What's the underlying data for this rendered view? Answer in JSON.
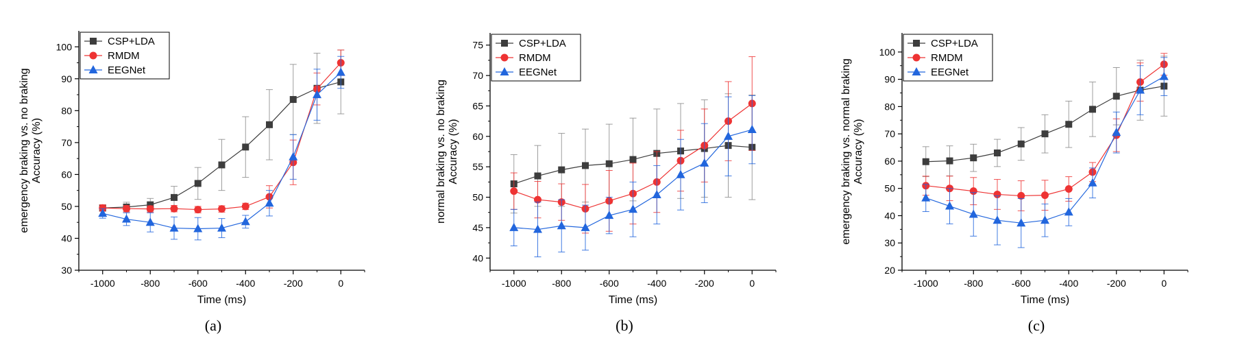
{
  "colors": {
    "csp": "#3d3d3d",
    "rmdm": "#ee3333",
    "eegnet": "#2266dd",
    "csp_err": "#8c8c8c",
    "rmdm_err": "#ee3333",
    "eegnet_err": "#2266dd"
  },
  "chart_data": [
    {
      "type": "line",
      "panel_label": "(a)",
      "xlabel": "Time (ms)",
      "ylabel_line1": "emergency braking vs. no braking",
      "ylabel_line2": "Accuracy (%)",
      "x": [
        -1000,
        -900,
        -800,
        -700,
        -600,
        -500,
        -400,
        -300,
        -200,
        -100,
        0
      ],
      "xticks": [
        -1000,
        -800,
        -600,
        -400,
        -200,
        0
      ],
      "xlim": [
        -1100,
        100
      ],
      "ylim": [
        30,
        105
      ],
      "yticks": [
        30,
        40,
        50,
        60,
        70,
        80,
        90,
        100
      ],
      "legend_position": "top-left",
      "series": [
        {
          "name": "CSP+LDA",
          "marker": "square",
          "values": [
            49.5,
            49.8,
            50.5,
            52.8,
            57.2,
            63.0,
            68.6,
            75.6,
            83.5,
            87.0,
            89.0
          ],
          "errors": [
            1.0,
            1.5,
            2.0,
            3.5,
            5.0,
            8.0,
            9.5,
            11.0,
            11.0,
            11.0,
            10.0
          ]
        },
        {
          "name": "RMDM",
          "marker": "circle",
          "values": [
            49.5,
            49.3,
            49.2,
            49.3,
            49.0,
            49.2,
            50.0,
            53.0,
            63.8,
            86.8,
            95.0
          ],
          "errors": [
            1.0,
            1.0,
            1.0,
            1.0,
            1.0,
            1.0,
            1.0,
            3.5,
            7.0,
            5.0,
            4.0
          ]
        },
        {
          "name": "EEGNet",
          "marker": "triangle",
          "values": [
            47.8,
            46.0,
            45.0,
            43.2,
            43.0,
            43.2,
            45.2,
            51.0,
            65.5,
            85.0,
            92.0
          ],
          "errors": [
            1.5,
            2.0,
            3.0,
            3.5,
            3.5,
            3.0,
            2.0,
            4.0,
            7.0,
            8.0,
            5.0
          ]
        }
      ]
    },
    {
      "type": "line",
      "panel_label": "(b)",
      "xlabel": "Time (ms)",
      "ylabel_line1": "normal braking vs. no braking",
      "ylabel_line2": "Accuracy (%)",
      "x": [
        -1000,
        -900,
        -800,
        -700,
        -600,
        -500,
        -400,
        -300,
        -200,
        -100,
        0
      ],
      "xticks": [
        -1000,
        -800,
        -600,
        -400,
        -200,
        0
      ],
      "xlim": [
        -1100,
        100
      ],
      "ylim": [
        38,
        77
      ],
      "yticks": [
        40,
        45,
        50,
        55,
        60,
        65,
        70,
        75
      ],
      "legend_position": "top-left",
      "series": [
        {
          "name": "CSP+LDA",
          "marker": "square",
          "values": [
            52.2,
            53.5,
            54.5,
            55.2,
            55.5,
            56.2,
            57.2,
            57.6,
            58.0,
            58.5,
            58.2
          ],
          "errors": [
            4.8,
            5.0,
            6.0,
            6.0,
            6.5,
            6.8,
            7.3,
            7.8,
            8.0,
            8.5,
            8.6
          ]
        },
        {
          "name": "RMDM",
          "marker": "circle",
          "values": [
            51.0,
            49.6,
            49.2,
            48.1,
            49.4,
            50.6,
            52.5,
            56.0,
            58.5,
            62.5,
            65.4
          ],
          "errors": [
            3.0,
            3.0,
            3.0,
            4.0,
            5.0,
            5.0,
            5.0,
            5.0,
            6.0,
            6.5,
            7.7
          ]
        },
        {
          "name": "EEGNet",
          "marker": "triangle",
          "values": [
            45.0,
            44.7,
            45.3,
            45.0,
            47.0,
            48.0,
            50.4,
            53.7,
            55.6,
            60.0,
            61.1
          ],
          "errors": [
            3.0,
            4.5,
            4.3,
            3.7,
            3.0,
            4.5,
            4.8,
            5.8,
            6.5,
            6.5,
            5.6
          ]
        }
      ]
    },
    {
      "type": "line",
      "panel_label": "(c)",
      "xlabel": "Time (ms)",
      "ylabel_line1": "emergency braking vs. normal braking",
      "ylabel_line2": "Accuracy (%)",
      "x": [
        -1000,
        -900,
        -800,
        -700,
        -600,
        -500,
        -400,
        -300,
        -200,
        -100,
        0
      ],
      "xticks": [
        -1000,
        -800,
        -600,
        -400,
        -200,
        0
      ],
      "xlim": [
        -1100,
        100
      ],
      "ylim": [
        20,
        107
      ],
      "yticks": [
        20,
        30,
        40,
        50,
        60,
        70,
        80,
        90,
        100
      ],
      "legend_position": "top-left",
      "series": [
        {
          "name": "CSP+LDA",
          "marker": "square",
          "values": [
            59.8,
            60.1,
            61.2,
            63.0,
            66.3,
            70.0,
            73.5,
            79.0,
            83.8,
            86.0,
            87.5
          ],
          "errors": [
            5.5,
            5.5,
            5.0,
            5.0,
            6.0,
            7.0,
            8.5,
            10.0,
            10.5,
            11.0,
            11.0
          ]
        },
        {
          "name": "RMDM",
          "marker": "circle",
          "values": [
            51.0,
            50.0,
            49.0,
            47.8,
            47.3,
            47.5,
            49.8,
            56.0,
            69.5,
            89.0,
            95.5
          ],
          "errors": [
            3.5,
            4.5,
            5.0,
            5.5,
            5.5,
            5.5,
            4.5,
            3.5,
            6.0,
            7.0,
            4.0
          ]
        },
        {
          "name": "EEGNet",
          "marker": "triangle",
          "values": [
            46.5,
            43.5,
            40.5,
            38.3,
            37.3,
            38.3,
            41.3,
            52.0,
            70.5,
            86.0,
            91.0
          ],
          "errors": [
            5.0,
            6.5,
            8.0,
            9.0,
            9.0,
            6.0,
            5.0,
            5.5,
            7.5,
            9.0,
            7.0
          ]
        }
      ]
    }
  ]
}
